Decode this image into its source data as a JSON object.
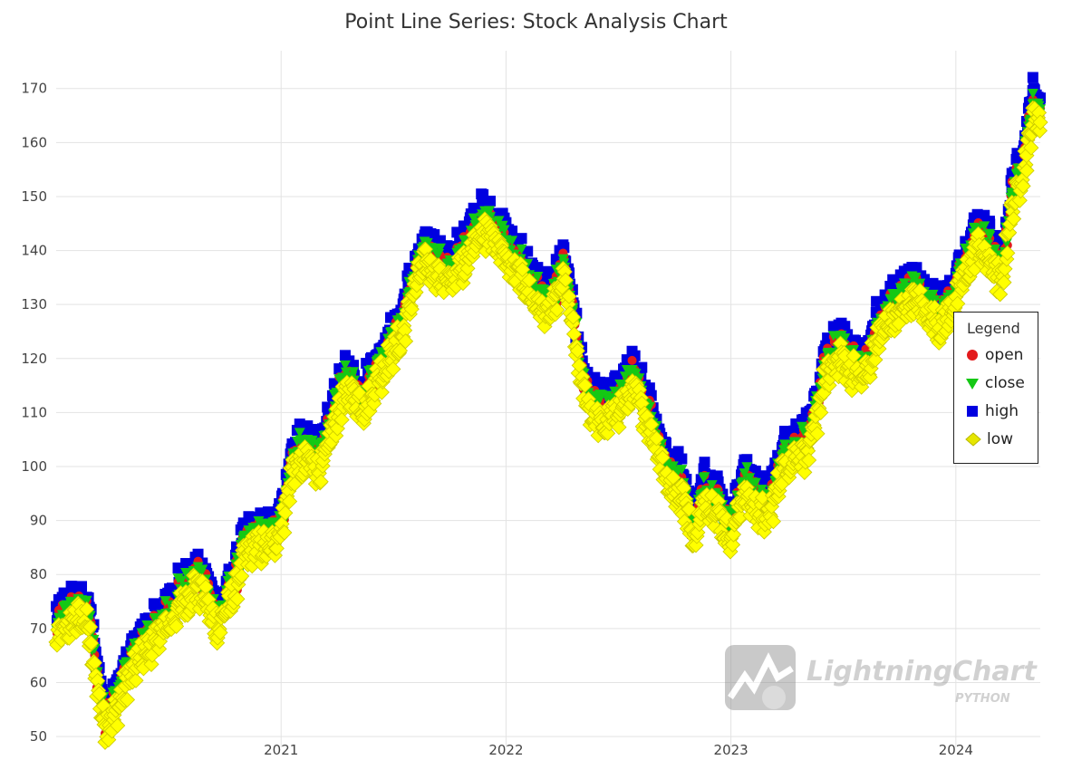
{
  "chart_data": {
    "type": "scatter",
    "title": "Point Line Series: Stock Analysis Chart",
    "xlabel": "",
    "ylabel": "",
    "xlim": [
      "2020-01-02",
      "2024-05-17"
    ],
    "ylim": [
      48,
      177
    ],
    "x_ticks": [
      "2021",
      "2022",
      "2023",
      "2024"
    ],
    "y_ticks": [
      50,
      60,
      70,
      80,
      90,
      100,
      110,
      120,
      130,
      140,
      150,
      160,
      170
    ],
    "grid": true,
    "legend_position": "right",
    "legend_title": "Legend",
    "series": [
      {
        "name": "open",
        "marker": "circle",
        "color": "#e31a1c"
      },
      {
        "name": "close",
        "marker": "triangle-down",
        "color": "#14c814"
      },
      {
        "name": "high",
        "marker": "square",
        "color": "#0000e0"
      },
      {
        "name": "low",
        "marker": "diamond",
        "color": "#e6e600"
      }
    ],
    "price_path": [
      [
        "2020-01-02",
        70
      ],
      [
        "2020-01-25",
        73
      ],
      [
        "2020-02-15",
        74
      ],
      [
        "2020-02-25",
        71
      ],
      [
        "2020-03-05",
        64
      ],
      [
        "2020-03-20",
        54
      ],
      [
        "2020-04-05",
        56
      ],
      [
        "2020-04-25",
        62
      ],
      [
        "2020-05-20",
        67
      ],
      [
        "2020-06-20",
        71
      ],
      [
        "2020-07-15",
        75
      ],
      [
        "2020-08-15",
        80
      ],
      [
        "2020-09-01",
        77
      ],
      [
        "2020-09-20",
        72
      ],
      [
        "2020-10-15",
        78
      ],
      [
        "2020-11-01",
        85
      ],
      [
        "2020-11-20",
        87
      ],
      [
        "2020-12-15",
        87
      ],
      [
        "2021-01-05",
        92
      ],
      [
        "2021-01-20",
        102
      ],
      [
        "2021-02-15",
        103
      ],
      [
        "2021-03-10",
        102
      ],
      [
        "2021-04-01",
        112
      ],
      [
        "2021-04-20",
        116
      ],
      [
        "2021-05-15",
        113
      ],
      [
        "2021-06-15",
        120
      ],
      [
        "2021-07-15",
        126
      ],
      [
        "2021-08-05",
        135
      ],
      [
        "2021-08-25",
        140
      ],
      [
        "2021-09-15",
        137
      ],
      [
        "2021-10-05",
        136
      ],
      [
        "2021-10-25",
        140
      ],
      [
        "2021-11-15",
        145
      ],
      [
        "2021-12-05",
        145
      ],
      [
        "2021-12-25",
        142
      ],
      [
        "2022-01-15",
        138
      ],
      [
        "2022-02-05",
        135
      ],
      [
        "2022-02-20",
        132
      ],
      [
        "2022-03-15",
        130
      ],
      [
        "2022-04-05",
        137
      ],
      [
        "2022-04-20",
        127
      ],
      [
        "2022-05-05",
        116
      ],
      [
        "2022-05-25",
        111
      ],
      [
        "2022-06-15",
        110
      ],
      [
        "2022-07-05",
        113
      ],
      [
        "2022-07-25",
        116
      ],
      [
        "2022-08-15",
        112
      ],
      [
        "2022-09-05",
        105
      ],
      [
        "2022-09-25",
        98
      ],
      [
        "2022-10-15",
        97
      ],
      [
        "2022-11-01",
        88
      ],
      [
        "2022-11-20",
        96
      ],
      [
        "2022-12-10",
        94
      ],
      [
        "2023-01-01",
        88
      ],
      [
        "2023-01-20",
        97
      ],
      [
        "2023-02-10",
        95
      ],
      [
        "2023-03-01",
        92
      ],
      [
        "2023-03-25",
        101
      ],
      [
        "2023-04-15",
        104
      ],
      [
        "2023-05-10",
        105
      ],
      [
        "2023-06-01",
        118
      ],
      [
        "2023-06-25",
        122
      ],
      [
        "2023-07-15",
        120
      ],
      [
        "2023-08-05",
        118
      ],
      [
        "2023-08-25",
        125
      ],
      [
        "2023-09-15",
        129
      ],
      [
        "2023-10-05",
        131
      ],
      [
        "2023-10-25",
        133
      ],
      [
        "2023-11-15",
        130
      ],
      [
        "2023-12-05",
        128
      ],
      [
        "2023-12-25",
        131
      ],
      [
        "2024-01-15",
        137
      ],
      [
        "2024-02-05",
        143
      ],
      [
        "2024-02-25",
        140
      ],
      [
        "2024-03-15",
        136
      ],
      [
        "2024-04-01",
        150
      ],
      [
        "2024-04-15",
        155
      ],
      [
        "2024-04-25",
        160
      ],
      [
        "2024-05-05",
        167
      ],
      [
        "2024-05-17",
        166
      ]
    ]
  },
  "watermark": {
    "brand": "LightningChart",
    "sub": "PYTHON"
  }
}
